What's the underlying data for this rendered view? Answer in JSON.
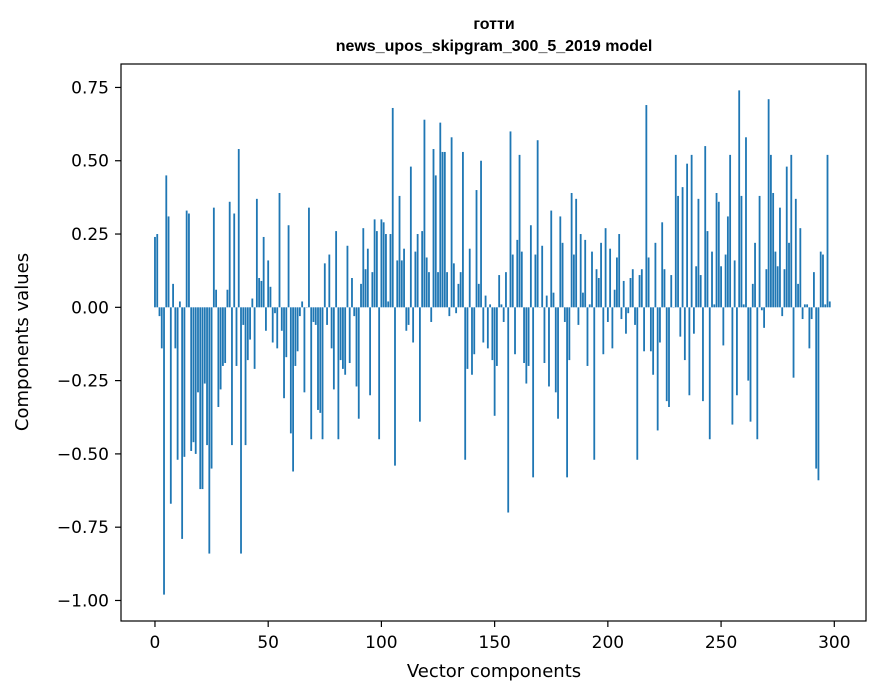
{
  "chart_data": {
    "type": "bar",
    "title": "готти",
    "subtitle": "news_upos_skipgram_300_5_2019 model",
    "xlabel": "Vector components",
    "ylabel": "Components values",
    "xlim": [
      -15,
      314
    ],
    "ylim": [
      -1.07,
      0.83
    ],
    "xticks": [
      0,
      50,
      100,
      150,
      200,
      250,
      300
    ],
    "xtick_labels": [
      "0",
      "50",
      "100",
      "150",
      "200",
      "250",
      "300"
    ],
    "yticks": [
      0.75,
      0.5,
      0.25,
      0.0,
      -0.25,
      -0.5,
      -0.75,
      -1.0
    ],
    "ytick_labels": [
      "0.75",
      "0.50",
      "0.25",
      "0.00",
      "−0.25",
      "−0.50",
      "−0.75",
      "−1.00"
    ],
    "bar_color": "#1f77b4",
    "grid": false,
    "x": "0..299 (one bar per vector component)",
    "values": [
      0.24,
      0.25,
      -0.03,
      -0.14,
      -0.98,
      0.45,
      0.31,
      -0.67,
      0.08,
      -0.14,
      -0.52,
      0.02,
      -0.79,
      -0.51,
      0.33,
      0.32,
      -0.49,
      -0.46,
      -0.5,
      -0.29,
      -0.62,
      -0.62,
      -0.26,
      -0.47,
      -0.84,
      -0.55,
      0.34,
      0.06,
      -0.34,
      -0.28,
      -0.2,
      -0.19,
      0.06,
      0.36,
      -0.47,
      0.32,
      -0.2,
      0.54,
      -0.84,
      -0.06,
      -0.47,
      -0.18,
      -0.11,
      0.03,
      -0.21,
      0.37,
      0.1,
      0.09,
      0.24,
      -0.08,
      0.16,
      0.07,
      -0.12,
      -0.02,
      -0.14,
      0.39,
      -0.08,
      -0.31,
      -0.17,
      0.28,
      -0.43,
      -0.56,
      -0.2,
      -0.15,
      -0.03,
      0.02,
      -0.29,
      0.0,
      0.34,
      -0.45,
      -0.05,
      -0.06,
      -0.35,
      -0.36,
      -0.45,
      0.15,
      -0.06,
      0.18,
      -0.14,
      -0.28,
      0.26,
      -0.45,
      -0.18,
      -0.21,
      -0.23,
      0.21,
      -0.19,
      0.1,
      -0.03,
      -0.27,
      -0.38,
      0.08,
      0.27,
      0.13,
      0.2,
      -0.3,
      0.12,
      0.3,
      0.26,
      -0.45,
      0.3,
      0.29,
      0.25,
      0.02,
      0.25,
      0.68,
      -0.54,
      0.16,
      0.38,
      0.16,
      0.2,
      -0.08,
      -0.06,
      0.48,
      -0.12,
      0.19,
      0.25,
      -0.39,
      0.26,
      0.64,
      0.17,
      0.12,
      -0.05,
      0.54,
      0.45,
      0.12,
      0.63,
      0.53,
      0.53,
      0.12,
      -0.03,
      0.58,
      0.15,
      -0.02,
      0.08,
      0.12,
      0.53,
      -0.52,
      -0.21,
      0.2,
      -0.23,
      -0.16,
      0.4,
      0.08,
      0.5,
      -0.12,
      0.04,
      -0.14,
      0.01,
      -0.18,
      -0.37,
      -0.2,
      0.11,
      0.01,
      -0.05,
      0.12,
      -0.7,
      0.6,
      0.18,
      -0.16,
      0.23,
      0.52,
      0.19,
      -0.19,
      -0.26,
      -0.2,
      0.28,
      -0.58,
      0.18,
      0.57,
      0.0,
      0.21,
      -0.19,
      0.04,
      -0.27,
      0.33,
      0.05,
      -0.29,
      -0.38,
      0.31,
      0.22,
      -0.05,
      -0.58,
      -0.18,
      0.39,
      0.18,
      0.37,
      -0.06,
      0.25,
      0.05,
      0.23,
      -0.2,
      0.01,
      0.19,
      -0.52,
      0.13,
      0.1,
      0.22,
      -0.16,
      0.27,
      -0.05,
      0.2,
      -0.14,
      0.06,
      0.17,
      0.25,
      -0.04,
      0.09,
      -0.09,
      -0.02,
      0.1,
      0.13,
      -0.06,
      -0.52,
      0.11,
      0.13,
      -0.15,
      0.69,
      0.17,
      -0.15,
      -0.23,
      0.22,
      -0.42,
      -0.12,
      0.29,
      0.13,
      -0.32,
      -0.34,
      0.11,
      0.0,
      0.52,
      0.38,
      -0.1,
      0.41,
      -0.18,
      0.49,
      -0.3,
      0.52,
      -0.09,
      0.14,
      0.37,
      0.11,
      -0.32,
      0.55,
      0.26,
      -0.45,
      0.19,
      0.01,
      0.39,
      0.36,
      0.14,
      -0.13,
      0.18,
      0.31,
      0.52,
      -0.4,
      0.16,
      -0.3,
      0.74,
      0.38,
      0.01,
      0.58,
      -0.25,
      -0.39,
      0.08,
      0.22,
      -0.45,
      0.38,
      -0.01,
      -0.07,
      0.13,
      0.71,
      0.52,
      0.39,
      0.19,
      0.14,
      0.34,
      -0.03,
      0.13,
      0.48,
      0.22,
      0.52,
      -0.24,
      0.37,
      0.08,
      0.27,
      -0.04,
      0.01,
      0.01,
      -0.14,
      -0.04,
      0.12,
      -0.55,
      -0.59,
      0.19,
      0.18,
      0.01,
      0.52,
      0.02
    ]
  }
}
